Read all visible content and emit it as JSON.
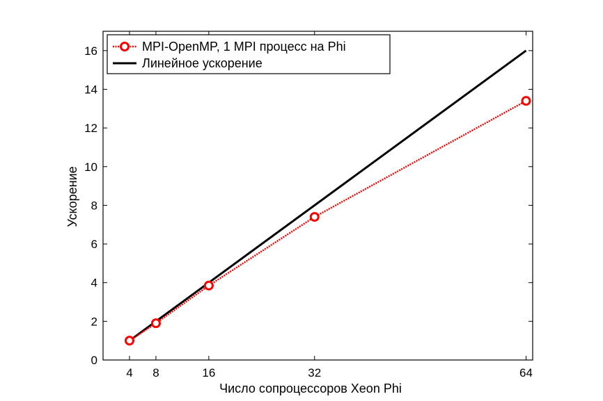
{
  "chart_data": {
    "type": "line",
    "xlabel": "Число сопроцессоров Xeon Phi",
    "ylabel": "Ускорение",
    "xlim": [
      0,
      65
    ],
    "ylim": [
      0,
      17
    ],
    "xticks": [
      4,
      8,
      16,
      32,
      64
    ],
    "yticks": [
      0,
      2,
      4,
      6,
      8,
      10,
      12,
      14,
      16
    ],
    "grid": false,
    "legend_position": "top-left",
    "series": [
      {
        "name": "MPI-OpenMP, 1 MPI процесс на Phi",
        "color": "#ff0000",
        "style": "dotted-line-circle-markers",
        "x": [
          4,
          8,
          16,
          32,
          64
        ],
        "y": [
          1.0,
          1.9,
          3.85,
          7.4,
          13.4
        ]
      },
      {
        "name": "Линейное ускорение",
        "color": "#000000",
        "style": "solid-line",
        "x": [
          4,
          64
        ],
        "y": [
          1,
          16
        ]
      }
    ]
  }
}
